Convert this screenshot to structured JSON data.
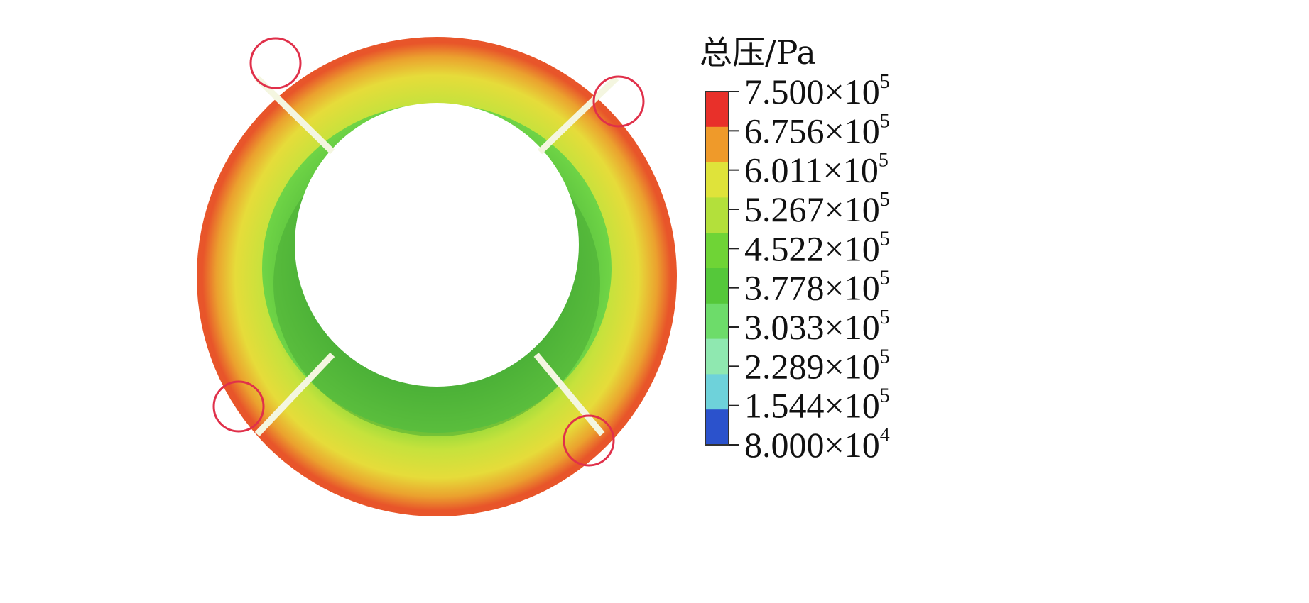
{
  "legend": {
    "title": "总压/Pa",
    "colors": [
      "#e8302a",
      "#ef9a2a",
      "#dfe33a",
      "#b3e03b",
      "#6fd436",
      "#55c83a",
      "#6ddc6a",
      "#8fe8b0",
      "#6ed2da",
      "#2b52cc"
    ],
    "ticks": [
      {
        "mantissa": "7.500",
        "times": "×",
        "base": "10",
        "exp": "5"
      },
      {
        "mantissa": "6.756",
        "times": "×",
        "base": "10",
        "exp": "5"
      },
      {
        "mantissa": "6.011",
        "times": "×",
        "base": "10",
        "exp": "5"
      },
      {
        "mantissa": "5.267",
        "times": "×",
        "base": "10",
        "exp": "5"
      },
      {
        "mantissa": "4.522",
        "times": "×",
        "base": "10",
        "exp": "5"
      },
      {
        "mantissa": "3.778",
        "times": "×",
        "base": "10",
        "exp": "5"
      },
      {
        "mantissa": "3.033",
        "times": "×",
        "base": "10",
        "exp": "5"
      },
      {
        "mantissa": "2.289",
        "times": "×",
        "base": "10",
        "exp": "5"
      },
      {
        "mantissa": "1.544",
        "times": "×",
        "base": "10",
        "exp": "5"
      },
      {
        "mantissa": "8.000",
        "times": "×",
        "base": "10",
        "exp": "4"
      }
    ]
  },
  "highlight_color": "#e0304a"
}
